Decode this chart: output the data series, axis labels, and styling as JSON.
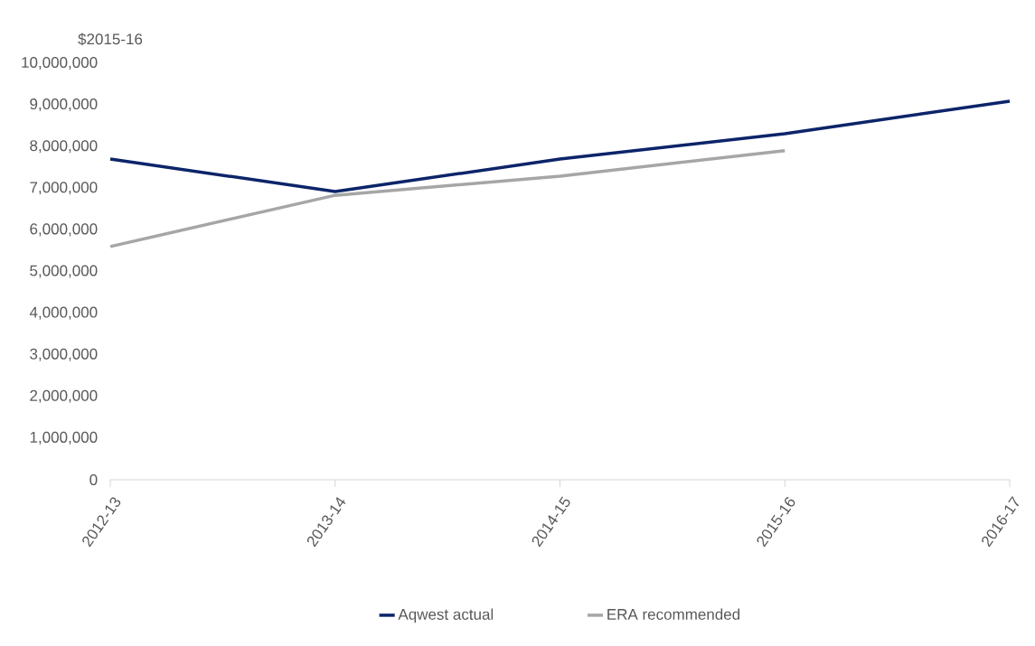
{
  "chart_data": {
    "type": "line",
    "ylabel": "$2015-16",
    "categories": [
      "2012-13",
      "2013-14",
      "2014-15",
      "2015-16",
      "2016-17"
    ],
    "series": [
      {
        "name": "Aqwest actual",
        "color": "#0c2469",
        "values": [
          7700000,
          6920000,
          7700000,
          8310000,
          9090000
        ]
      },
      {
        "name": "ERA recommended",
        "color": "#a6a6a6",
        "values": [
          5600000,
          6830000,
          7290000,
          7900000,
          null
        ]
      }
    ],
    "ylim": [
      0,
      10000000
    ],
    "yticks": [
      {
        "value": 0,
        "label": "0"
      },
      {
        "value": 1000000,
        "label": "1,000,000"
      },
      {
        "value": 2000000,
        "label": "2,000,000"
      },
      {
        "value": 3000000,
        "label": "3,000,000"
      },
      {
        "value": 4000000,
        "label": "4,000,000"
      },
      {
        "value": 5000000,
        "label": "5,000,000"
      },
      {
        "value": 6000000,
        "label": "6,000,000"
      },
      {
        "value": 7000000,
        "label": "7,000,000"
      },
      {
        "value": 8000000,
        "label": "8,000,000"
      },
      {
        "value": 9000000,
        "label": "9,000,000"
      },
      {
        "value": 10000000,
        "label": "10,000,000"
      }
    ],
    "legend": "bottom",
    "line_style": "solid",
    "marker": "none"
  }
}
